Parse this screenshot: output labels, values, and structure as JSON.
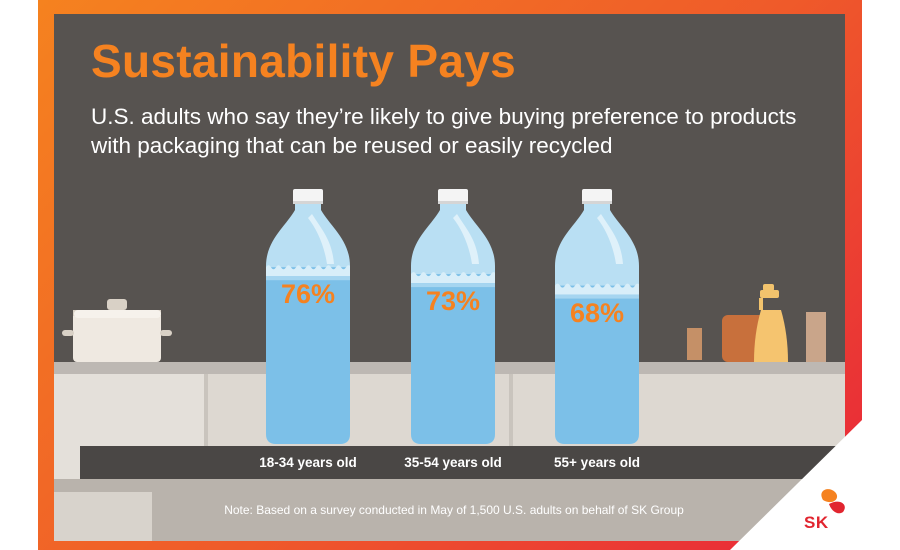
{
  "header": {
    "title": "Sustainability Pays",
    "subtitle": "U.S. adults who say they’re likely to give buying preference to products with packaging that can be reused or easily recycled"
  },
  "chart_data": {
    "type": "bar",
    "title": "Sustainability Pays",
    "subtitle": "U.S. adults who say they’re likely to give buying preference to products with packaging that can be reused or easily recycled",
    "categories": [
      "18-34 years old",
      "35-54 years old",
      "55+ years old"
    ],
    "values": [
      76,
      73,
      68
    ],
    "value_labels": [
      "76%",
      "73%",
      "68%"
    ],
    "unit": "%",
    "ylim": [
      0,
      100
    ],
    "xlabel": "",
    "ylabel": ""
  },
  "footer": {
    "note": "Note: Based on a survey conducted in May of 1,500 U.S. adults on behalf of SK Group"
  },
  "logo": {
    "text": "SK"
  },
  "colors": {
    "accent_orange": "#f58220",
    "frame_red": "#e8253a",
    "background": "#575350",
    "water": "#7cc0e8",
    "bottle_glass": "#b9dff3",
    "cap": "#f4f4f4"
  }
}
